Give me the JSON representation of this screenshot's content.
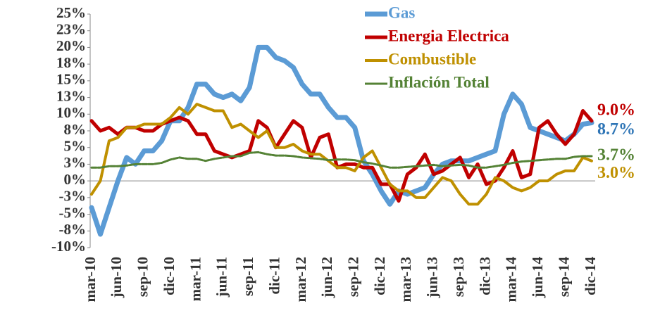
{
  "chart_data": {
    "type": "line",
    "categories": [
      "mar-10",
      null,
      null,
      "jun-10",
      null,
      null,
      "sep-10",
      null,
      null,
      "dic-10",
      null,
      null,
      "mar-11",
      null,
      null,
      "jun-11",
      null,
      null,
      "sep-11",
      null,
      null,
      "dic-11",
      null,
      null,
      "mar-12",
      null,
      null,
      "jun-12",
      null,
      null,
      "sep-12",
      null,
      null,
      "dic-12",
      null,
      null,
      "mar-13",
      null,
      null,
      "jun-13",
      null,
      null,
      "sep-13",
      null,
      null,
      "dic-13",
      null,
      null,
      "mar-14",
      null,
      null,
      "jun-14",
      null,
      null,
      "sep-14",
      null,
      null,
      "dic-14"
    ],
    "series": [
      {
        "name": "Gas",
        "color": "#5b9bd5",
        "label_color": "#2e75b6",
        "values": [
          -4,
          -8,
          -4,
          0,
          3.5,
          2.5,
          4.5,
          4.5,
          6,
          9,
          9,
          11,
          14.5,
          14.5,
          13,
          12.5,
          13,
          12,
          14,
          20,
          20,
          18.5,
          18,
          17,
          14.5,
          13,
          13,
          11,
          9.5,
          9.5,
          8,
          3,
          1,
          -1.5,
          -3.5,
          -1.5,
          -2,
          -1.5,
          -1,
          1,
          2.5,
          3,
          3,
          3,
          3.5,
          4,
          4.5,
          10,
          13,
          11.5,
          8,
          7.5,
          7,
          6.5,
          6,
          7,
          8.5,
          8.7
        ],
        "value_labels": [
          null,
          null,
          null,
          null,
          null,
          null,
          null,
          null,
          null,
          null,
          null,
          null,
          null,
          null,
          null,
          null,
          null,
          null,
          null,
          null,
          null,
          null,
          null,
          null,
          null,
          null,
          null,
          null,
          null,
          null,
          null,
          null,
          null,
          null,
          null,
          null,
          null,
          null,
          null,
          null,
          null,
          null,
          null,
          null,
          null,
          null,
          null,
          null,
          null,
          null,
          null,
          null,
          null,
          null,
          null,
          null,
          null,
          "8.7%"
        ]
      },
      {
        "name": "Energia Electrica",
        "color": "#c00000",
        "label_color": "#c00000",
        "values": [
          9,
          7.5,
          8,
          7,
          8,
          8,
          7.5,
          7.5,
          8.5,
          9,
          9.5,
          9,
          7,
          7,
          4.5,
          4,
          3.5,
          4,
          4.5,
          9,
          8,
          5,
          7,
          9,
          8,
          3.5,
          6.5,
          7,
          2,
          2.5,
          2.5,
          2,
          2,
          -0.5,
          -0.5,
          -3,
          1,
          2,
          4,
          1,
          1.5,
          2.5,
          3.5,
          0.5,
          2.5,
          -0.5,
          0,
          2,
          4.5,
          0.5,
          1,
          8,
          9,
          7,
          5.5,
          7,
          10.5,
          9.0
        ],
        "value_labels": [
          null,
          null,
          null,
          null,
          null,
          null,
          null,
          null,
          null,
          null,
          null,
          null,
          null,
          null,
          null,
          null,
          null,
          null,
          null,
          null,
          null,
          null,
          null,
          null,
          null,
          null,
          null,
          null,
          null,
          null,
          null,
          null,
          null,
          null,
          null,
          null,
          null,
          null,
          null,
          null,
          null,
          null,
          null,
          null,
          null,
          null,
          null,
          null,
          null,
          null,
          null,
          null,
          null,
          null,
          null,
          null,
          null,
          "9.0%"
        ]
      },
      {
        "name": "Combustible",
        "color": "#bf9000",
        "label_color": "#bf9000",
        "values": [
          -2,
          0,
          6,
          6.5,
          8,
          8,
          8.5,
          8.5,
          8.5,
          9.5,
          11,
          10,
          11.5,
          11,
          10.5,
          10.5,
          8,
          8.5,
          7.5,
          6.5,
          7.5,
          5,
          5,
          5.5,
          4.5,
          4,
          4,
          3,
          2,
          2,
          1.5,
          3.5,
          4.5,
          2,
          -0.5,
          -1.5,
          -1.5,
          -2.5,
          -2.5,
          -1,
          0.5,
          0,
          -2,
          -3.5,
          -3.5,
          -2,
          0.5,
          0,
          -1,
          -1.5,
          -1,
          0,
          0,
          1,
          1.5,
          1.5,
          3.5,
          3.0
        ],
        "value_labels": [
          null,
          null,
          null,
          null,
          null,
          null,
          null,
          null,
          null,
          null,
          null,
          null,
          null,
          null,
          null,
          null,
          null,
          null,
          null,
          null,
          null,
          null,
          null,
          null,
          null,
          null,
          null,
          null,
          null,
          null,
          null,
          null,
          null,
          null,
          null,
          null,
          null,
          null,
          null,
          null,
          null,
          null,
          null,
          null,
          null,
          null,
          null,
          null,
          null,
          null,
          null,
          null,
          null,
          null,
          null,
          null,
          null,
          "3.0%"
        ]
      },
      {
        "name": "Inflación Total",
        "color": "#548235",
        "label_color": "#548235",
        "values": [
          2,
          2,
          2.2,
          2.2,
          2.3,
          2.5,
          2.5,
          2.5,
          2.7,
          3.2,
          3.5,
          3.3,
          3.3,
          3.0,
          3.3,
          3.5,
          3.7,
          3.7,
          4.2,
          4.3,
          4.0,
          3.8,
          3.8,
          3.7,
          3.5,
          3.4,
          3.3,
          3.1,
          3.2,
          3.2,
          3.1,
          2.8,
          2.6,
          2.3,
          2.0,
          2.0,
          2.1,
          2.2,
          2.3,
          2.4,
          2.2,
          2.3,
          2.4,
          2.3,
          2.0,
          2.0,
          2.2,
          2.4,
          2.7,
          2.9,
          3.0,
          3.1,
          3.2,
          3.3,
          3.3,
          3.6,
          3.7,
          3.7
        ],
        "value_labels": [
          null,
          null,
          null,
          null,
          null,
          null,
          null,
          null,
          null,
          null,
          null,
          null,
          null,
          null,
          null,
          null,
          null,
          null,
          null,
          null,
          null,
          null,
          null,
          null,
          null,
          null,
          null,
          null,
          null,
          null,
          null,
          null,
          null,
          null,
          null,
          null,
          null,
          null,
          null,
          null,
          null,
          null,
          null,
          null,
          null,
          null,
          null,
          null,
          null,
          null,
          null,
          null,
          null,
          null,
          null,
          null,
          null,
          "3.7%"
        ]
      }
    ],
    "ylim": [
      -10,
      25
    ],
    "yticks": [
      {
        "value": 25,
        "label": "25%"
      },
      {
        "value": 22.5,
        "label": "23%"
      },
      {
        "value": 20,
        "label": "20%"
      },
      {
        "value": 17.5,
        "label": "18%"
      },
      {
        "value": 15,
        "label": "15%"
      },
      {
        "value": 12.5,
        "label": "13%"
      },
      {
        "value": 10,
        "label": "10%"
      },
      {
        "value": 7.5,
        "label": "8%"
      },
      {
        "value": 5,
        "label": "5%"
      },
      {
        "value": 2.5,
        "label": "3%"
      },
      {
        "value": 0,
        "label": "0%"
      },
      {
        "value": -2.5,
        "label": "-3%"
      },
      {
        "value": -5,
        "label": "-5%"
      },
      {
        "value": -7.5,
        "label": "-8%"
      },
      {
        "value": -10,
        "label": "-10%"
      }
    ],
    "grid": false,
    "legend": "top"
  }
}
